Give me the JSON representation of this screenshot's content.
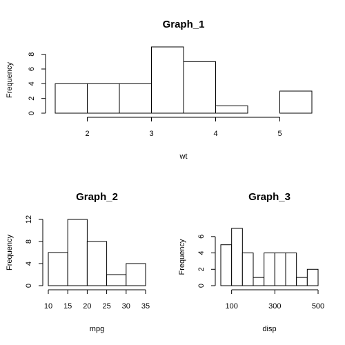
{
  "chart_data": [
    {
      "type": "bar",
      "title": "Graph_1",
      "xlabel": "wt",
      "ylabel": "Frequency",
      "bins": [
        [
          1.5,
          2.0
        ],
        [
          2.0,
          2.5
        ],
        [
          2.5,
          3.0
        ],
        [
          3.0,
          3.5
        ],
        [
          3.5,
          4.0
        ],
        [
          4.0,
          4.5
        ],
        [
          4.5,
          5.0
        ],
        [
          5.0,
          5.5
        ]
      ],
      "values": [
        4,
        4,
        4,
        9,
        7,
        1,
        0,
        3
      ],
      "xticks": [
        2,
        3,
        4,
        5
      ],
      "yticks": [
        0,
        2,
        4,
        6,
        8
      ],
      "xlim": [
        1.5,
        5.5
      ],
      "ylim": [
        0,
        9
      ]
    },
    {
      "type": "bar",
      "title": "Graph_2",
      "xlabel": "mpg",
      "ylabel": "Frequency",
      "bins": [
        [
          10,
          15
        ],
        [
          15,
          20
        ],
        [
          20,
          25
        ],
        [
          25,
          30
        ],
        [
          30,
          35
        ]
      ],
      "values": [
        6,
        12,
        8,
        2,
        4
      ],
      "xticks": [
        10,
        15,
        20,
        25,
        30,
        35
      ],
      "yticks": [
        0,
        4,
        8,
        12
      ],
      "xlim": [
        10,
        35
      ],
      "ylim": [
        0,
        12
      ]
    },
    {
      "type": "bar",
      "title": "Graph_3",
      "xlabel": "disp",
      "ylabel": "Frequency",
      "bins": [
        [
          50,
          100
        ],
        [
          100,
          150
        ],
        [
          150,
          200
        ],
        [
          200,
          250
        ],
        [
          250,
          300
        ],
        [
          300,
          350
        ],
        [
          350,
          400
        ],
        [
          400,
          450
        ],
        [
          450,
          500
        ]
      ],
      "values": [
        5,
        7,
        4,
        1,
        4,
        4,
        4,
        1,
        2
      ],
      "xticks": [
        100,
        300,
        500
      ],
      "yticks": [
        0,
        2,
        4,
        6
      ],
      "xlim": [
        50,
        500
      ],
      "ylim": [
        0,
        7
      ]
    }
  ]
}
